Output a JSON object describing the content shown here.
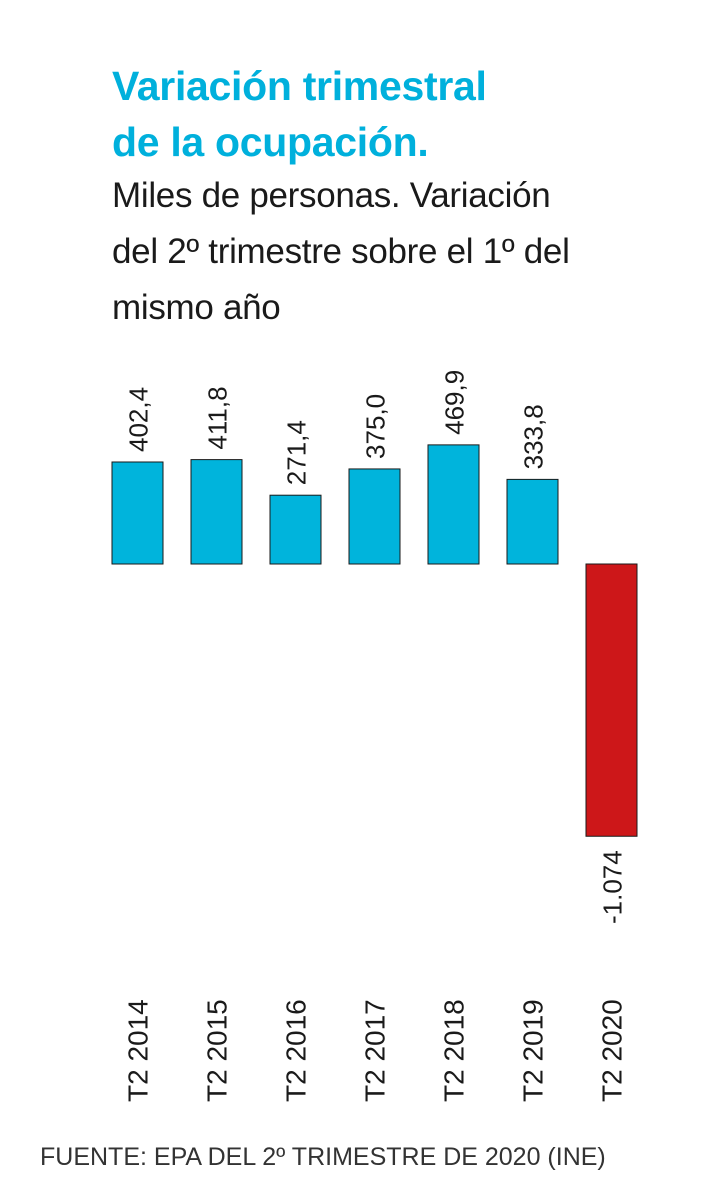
{
  "title_line1": "Variación trimestral",
  "title_line2": "de la ocupación.",
  "subtitle_line1": "Miles de personas. Variación",
  "subtitle_line2": "del 2º trimestre sobre el 1º del",
  "subtitle_line3": "mismo año",
  "source": "FUENTE: EPA DEL 2º TRIMESTRE DE 2020 (INE)",
  "colors": {
    "positive": "#00b4dc",
    "negative": "#cd1719",
    "title": "#00b0dc"
  },
  "chart_data": {
    "type": "bar",
    "categories": [
      "T2 2014",
      "T2 2015",
      "T2 2016",
      "T2 2017",
      "T2 2018",
      "T2 2019",
      "T2 2020"
    ],
    "values": [
      402.4,
      411.8,
      271.4,
      375.0,
      469.9,
      333.8,
      -1074
    ],
    "value_labels": [
      "402,4",
      "411,8",
      "271,4",
      "375,0",
      "469,9",
      "333,8",
      "-1.074"
    ],
    "xlabel": "",
    "ylabel": "",
    "grid": false,
    "legend": "none"
  }
}
